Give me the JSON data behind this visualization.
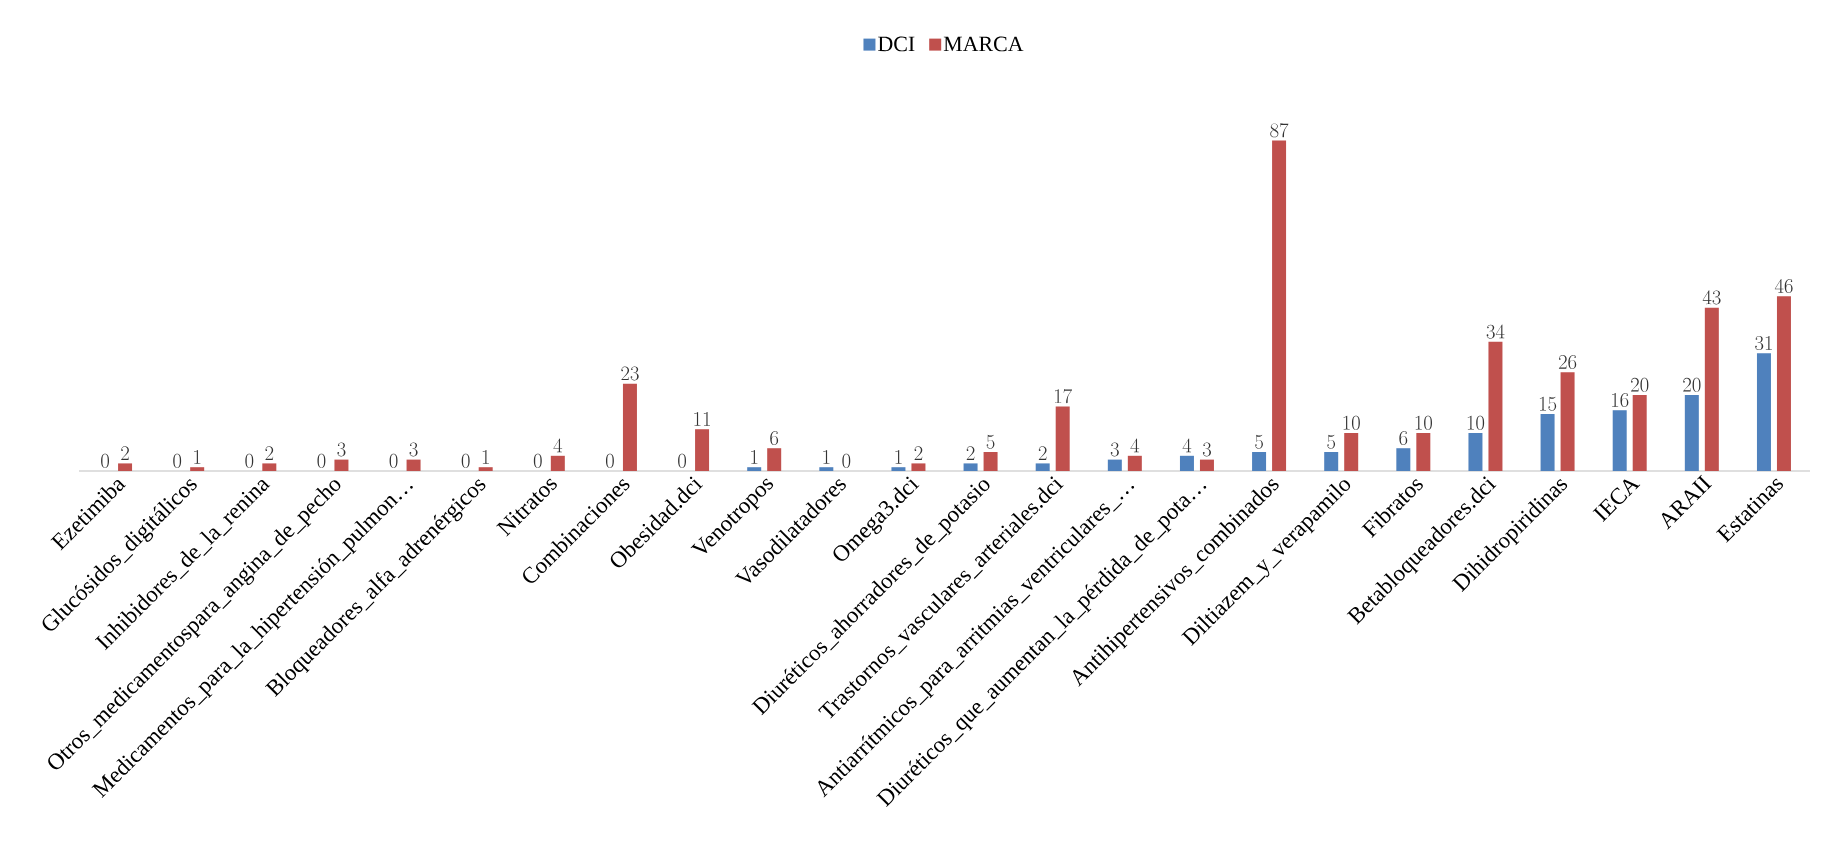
{
  "chart_data": {
    "type": "bar",
    "categories": [
      "Ezetimiba",
      "Glucósidos_digitálicos",
      "Inhibidores_de_la_renina",
      "Otros_medicamentospara_angina_de_pecho",
      "Medicamentos_para_la_hipertensión_pulmon…",
      "Bloqueadores_alfa_adrenérgicos",
      "Nitratos",
      "Combinaciones",
      "Obesidad.dci",
      "Venotropos",
      "Vasodilatadores",
      "Omega3.dci",
      "Diuréticos_ahorradores_de_potasio",
      "Trastornos_vasculares_arteriales.dci",
      "Antiarrítmicos_para_arritmias_ventriculares_…",
      "Diuréticos_que_aumentan_la_pérdida_de_pota…",
      "Antihipertensivos_combinados",
      "Diltiazem_y_verapamilo",
      "Fibratos",
      "Betabloqueadores.dci",
      "Dihidropiridinas",
      "IECA",
      "ARAII",
      "Estatinas"
    ],
    "series": [
      {
        "name": "DCI",
        "color": "#4f81bd",
        "values": [
          0,
          0,
          0,
          0,
          0,
          0,
          0,
          0,
          0,
          1,
          1,
          1,
          2,
          2,
          3,
          4,
          5,
          5,
          6,
          10,
          15,
          16,
          20,
          31
        ]
      },
      {
        "name": "MARCA",
        "color": "#c0504d",
        "values": [
          2,
          1,
          2,
          3,
          3,
          1,
          4,
          23,
          11,
          6,
          0,
          2,
          5,
          17,
          4,
          3,
          87,
          10,
          10,
          34,
          26,
          20,
          43,
          46
        ]
      }
    ],
    "data_labels": true,
    "legend": "top"
  }
}
